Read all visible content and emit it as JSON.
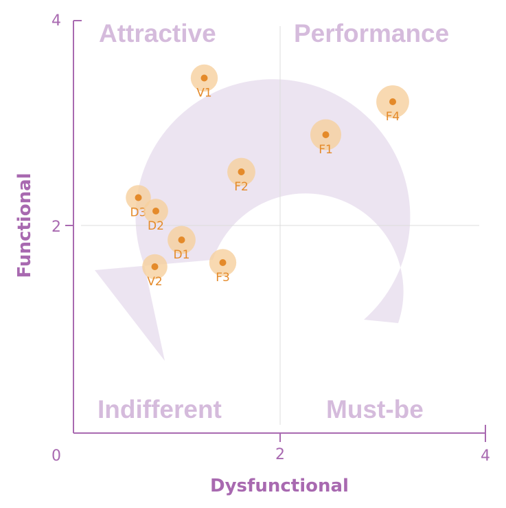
{
  "chart_data": {
    "type": "scatter",
    "title": "",
    "xlabel": "Dysfunctional",
    "ylabel": "Functional",
    "xlim": [
      0,
      4
    ],
    "ylim": [
      0,
      4
    ],
    "x_ticks": [
      "0",
      "2",
      "4"
    ],
    "y_ticks": [
      "2",
      "4"
    ],
    "reference_lines": {
      "x": 2,
      "y": 2
    },
    "grid": false,
    "quadrants": {
      "top_left": "Attractive",
      "top_right": "Performance",
      "bottom_left": "Indifferent",
      "bottom_right": "Must-be"
    },
    "points": [
      {
        "label": "V1",
        "x": 1.27,
        "y": 3.43,
        "size": 0.55
      },
      {
        "label": "F4",
        "x": 3.1,
        "y": 3.2,
        "size": 0.85
      },
      {
        "label": "F1",
        "x": 2.45,
        "y": 2.88,
        "size": 0.75
      },
      {
        "label": "F2",
        "x": 1.63,
        "y": 2.52,
        "size": 0.6
      },
      {
        "label": "D3",
        "x": 0.63,
        "y": 2.27,
        "size": 0.45
      },
      {
        "label": "D2",
        "x": 0.8,
        "y": 2.14,
        "size": 0.42
      },
      {
        "label": "D1",
        "x": 1.05,
        "y": 1.86,
        "size": 0.6
      },
      {
        "label": "F3",
        "x": 1.45,
        "y": 1.64,
        "size": 0.55
      },
      {
        "label": "V2",
        "x": 0.79,
        "y": 1.6,
        "size": 0.45
      }
    ],
    "colors": {
      "axis": "#a869b0",
      "quadrant_text": "#d5bbdc",
      "arrow": "#ebe3f0",
      "reference_line": "#dcdcdc",
      "point_halo": "#f6cf9e",
      "point_dot": "#e48a2a"
    }
  }
}
